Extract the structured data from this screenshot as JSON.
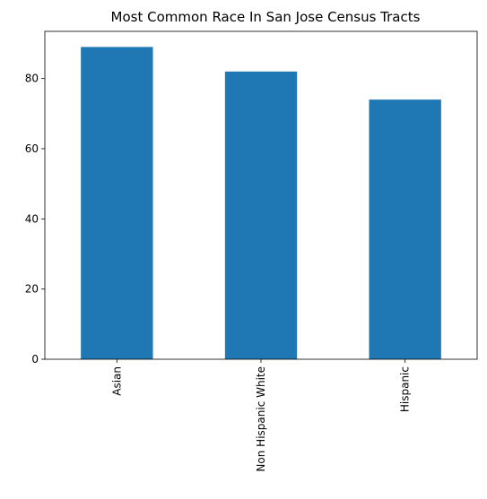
{
  "chart_data": {
    "type": "bar",
    "title": "Most Common Race In San Jose Census Tracts",
    "xlabel": "",
    "ylabel": "",
    "categories": [
      "Asian",
      "Non Hispanic White",
      "Hispanic"
    ],
    "values": [
      89,
      82,
      74
    ],
    "ylim": [
      0,
      93.45
    ],
    "yticks": [
      0,
      20,
      40,
      60,
      80
    ],
    "grid": false,
    "legend": "none",
    "bar_color": "#1f77b4"
  }
}
